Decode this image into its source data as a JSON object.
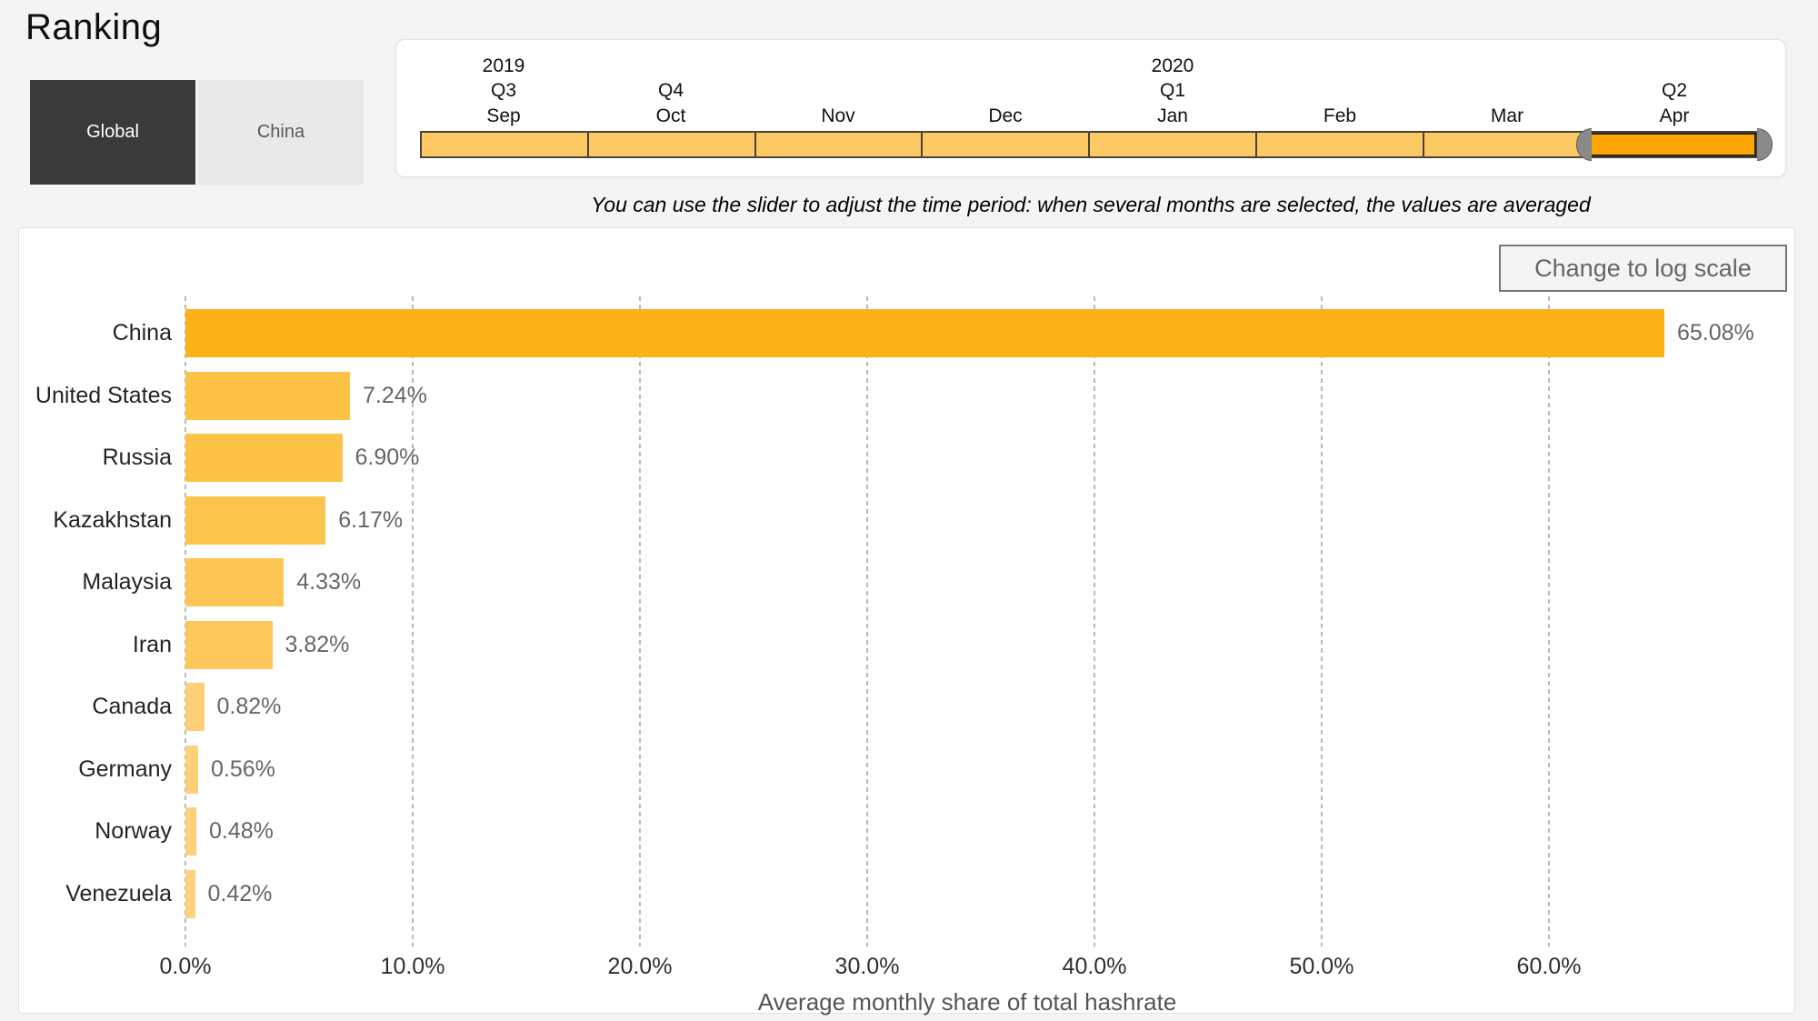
{
  "page": {
    "title": "Ranking"
  },
  "toggle": {
    "options": [
      {
        "label": "Global",
        "selected": true
      },
      {
        "label": "China",
        "selected": false
      }
    ]
  },
  "time_slider": {
    "instruction": "You can use the slider to adjust the time period: when several months are selected, the values are averaged",
    "segments": [
      {
        "month": "Sep",
        "quarter": "Q3",
        "year": "2019",
        "selected": false
      },
      {
        "month": "Oct",
        "quarter": "Q4",
        "selected": false
      },
      {
        "month": "Nov",
        "selected": false
      },
      {
        "month": "Dec",
        "selected": false
      },
      {
        "month": "Jan",
        "quarter": "Q1",
        "year": "2020",
        "selected": false
      },
      {
        "month": "Feb",
        "selected": false
      },
      {
        "month": "Mar",
        "selected": false
      },
      {
        "month": "Apr",
        "quarter": "Q2",
        "selected": true
      }
    ],
    "colors": {
      "segment": "#fcc963",
      "selected_segment": "#fca504",
      "handle": "#8a8a8a",
      "border": "#45433c"
    }
  },
  "chart": {
    "log_button_label": "Change to log scale"
  },
  "chart_data": {
    "type": "bar",
    "orientation": "horizontal",
    "title": "",
    "categories": [
      "China",
      "United States",
      "Russia",
      "Kazakhstan",
      "Malaysia",
      "Iran",
      "Canada",
      "Germany",
      "Norway",
      "Venezuela"
    ],
    "values": [
      65.08,
      7.24,
      6.9,
      6.17,
      4.33,
      3.82,
      0.82,
      0.56,
      0.48,
      0.42
    ],
    "value_labels": [
      "65.08%",
      "7.24%",
      "6.90%",
      "6.17%",
      "4.33%",
      "3.82%",
      "0.82%",
      "0.56%",
      "0.48%",
      "0.42%"
    ],
    "bar_colors": [
      "#fcb118",
      "#fdc246",
      "#fdc348",
      "#fdc44d",
      "#fdc655",
      "#fdc75a",
      "#fdcf76",
      "#fdd07a",
      "#fdd17c",
      "#fdd17d"
    ],
    "xlabel": "Average monthly share of total hashrate",
    "ylabel": "",
    "xlim": [
      0,
      70
    ],
    "xticks": [
      0,
      10,
      20,
      30,
      40,
      50,
      60
    ],
    "xtick_labels": [
      "0.0%",
      "10.0%",
      "20.0%",
      "30.0%",
      "40.0%",
      "50.0%",
      "60.0%"
    ],
    "grid": "vertical-dashed",
    "legend": false
  }
}
